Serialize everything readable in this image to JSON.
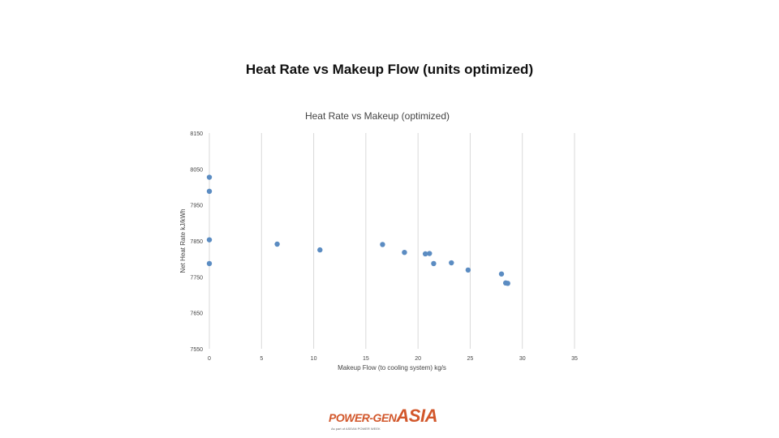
{
  "slide": {
    "title": "Heat Rate vs Makeup Flow (units optimized)"
  },
  "chart_data": {
    "type": "scatter",
    "title": "Heat Rate vs Makeup (optimized)",
    "xlabel": "Makeup Flow (to cooling system) kg/s",
    "ylabel": "Net Heat Rate kJ/kWh",
    "xlim": [
      0,
      35
    ],
    "ylim": [
      7550,
      8150
    ],
    "xticks": [
      "0",
      "5",
      "10",
      "15",
      "20",
      "25",
      "30",
      "35"
    ],
    "yticks": [
      "7550",
      "7650",
      "7750",
      "7850",
      "7950",
      "8050",
      "8150"
    ],
    "grid": "vertical",
    "legend": "none",
    "marker_color": "#5b8cc2",
    "points": [
      {
        "x": 0,
        "y": 8027
      },
      {
        "x": 0,
        "y": 7988
      },
      {
        "x": 0,
        "y": 7853
      },
      {
        "x": 0,
        "y": 7787
      },
      {
        "x": 6.5,
        "y": 7841
      },
      {
        "x": 10.6,
        "y": 7825
      },
      {
        "x": 16.6,
        "y": 7840
      },
      {
        "x": 18.7,
        "y": 7818
      },
      {
        "x": 20.7,
        "y": 7814
      },
      {
        "x": 21.1,
        "y": 7815
      },
      {
        "x": 21.5,
        "y": 7787
      },
      {
        "x": 23.2,
        "y": 7789
      },
      {
        "x": 24.8,
        "y": 7769
      },
      {
        "x": 28.0,
        "y": 7758
      },
      {
        "x": 28.4,
        "y": 7733
      },
      {
        "x": 28.6,
        "y": 7732
      }
    ]
  },
  "logo": {
    "brand": "POWER-GEN",
    "asia": "ASIA",
    "tagline": "As part of ASEAN POWER WEEK"
  }
}
